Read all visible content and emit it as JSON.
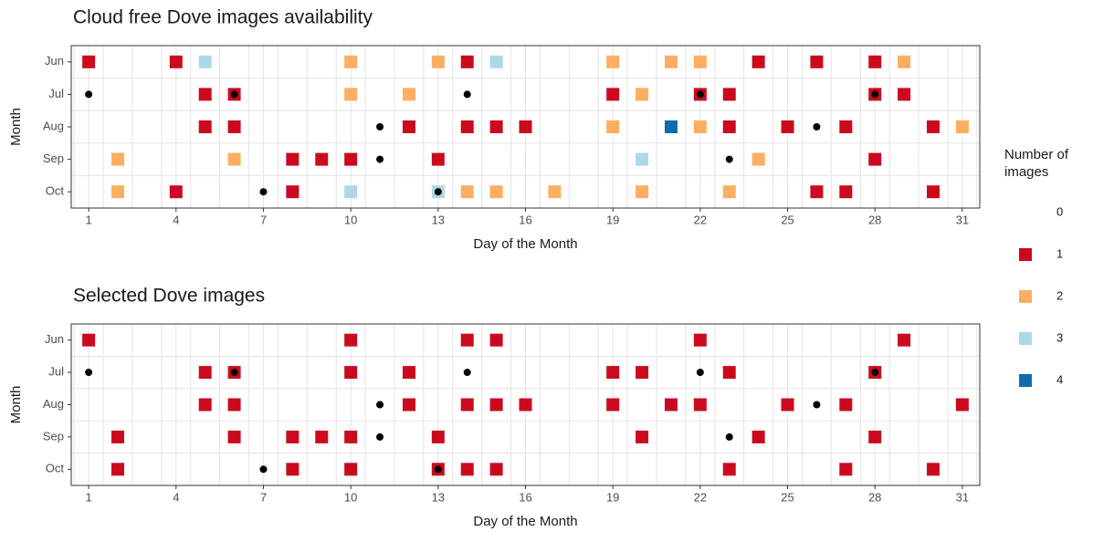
{
  "chart_data": [
    {
      "type": "scatter",
      "title": "Cloud free Dove images availability",
      "x_label": "Day of the Month",
      "y_label": "Month",
      "categories": [
        "Jun",
        "Jul",
        "Aug",
        "Sep",
        "Oct"
      ],
      "xlim": [
        0.4,
        31.6
      ],
      "xticks": [
        1,
        4,
        7,
        10,
        13,
        16,
        19,
        22,
        25,
        28,
        31
      ],
      "grid": true,
      "points": {
        "x": [
          1,
          4,
          5,
          10,
          13,
          14,
          15,
          19,
          21,
          22,
          24,
          26,
          28,
          29,
          5,
          6,
          10,
          12,
          19,
          20,
          22,
          23,
          28,
          29,
          5,
          6,
          12,
          14,
          15,
          16,
          19,
          21,
          22,
          23,
          25,
          27,
          30,
          31,
          2,
          6,
          8,
          9,
          10,
          13,
          20,
          24,
          28,
          2,
          4,
          8,
          10,
          13,
          14,
          15,
          17,
          20,
          23,
          26,
          27,
          30
        ],
        "y": [
          "Jun",
          "Jun",
          "Jun",
          "Jun",
          "Jun",
          "Jun",
          "Jun",
          "Jun",
          "Jun",
          "Jun",
          "Jun",
          "Jun",
          "Jun",
          "Jun",
          "Jul",
          "Jul",
          "Jul",
          "Jul",
          "Jul",
          "Jul",
          "Jul",
          "Jul",
          "Jul",
          "Jul",
          "Aug",
          "Aug",
          "Aug",
          "Aug",
          "Aug",
          "Aug",
          "Aug",
          "Aug",
          "Aug",
          "Aug",
          "Aug",
          "Aug",
          "Aug",
          "Aug",
          "Sep",
          "Sep",
          "Sep",
          "Sep",
          "Sep",
          "Sep",
          "Sep",
          "Sep",
          "Sep",
          "Oct",
          "Oct",
          "Oct",
          "Oct",
          "Oct",
          "Oct",
          "Oct",
          "Oct",
          "Oct",
          "Oct",
          "Oct",
          "Oct",
          "Oct"
        ],
        "values": [
          1,
          1,
          3,
          2,
          2,
          1,
          3,
          2,
          2,
          2,
          1,
          1,
          1,
          2,
          1,
          1,
          2,
          2,
          1,
          2,
          1,
          1,
          1,
          1,
          1,
          1,
          1,
          1,
          1,
          1,
          2,
          4,
          2,
          1,
          1,
          1,
          1,
          2,
          2,
          2,
          1,
          1,
          1,
          1,
          3,
          2,
          1,
          2,
          1,
          1,
          3,
          3,
          2,
          2,
          2,
          2,
          2,
          1,
          1,
          1
        ]
      },
      "dots": {
        "x": [
          1,
          6,
          14,
          22,
          28,
          11,
          26,
          11,
          23,
          7,
          13
        ],
        "y": [
          "Jul",
          "Jul",
          "Jul",
          "Jul",
          "Jul",
          "Aug",
          "Aug",
          "Sep",
          "Sep",
          "Oct",
          "Oct"
        ]
      }
    },
    {
      "type": "scatter",
      "title": "Selected Dove images",
      "x_label": "Day of the Month",
      "y_label": "Month",
      "categories": [
        "Jun",
        "Jul",
        "Aug",
        "Sep",
        "Oct"
      ],
      "xlim": [
        0.4,
        31.6
      ],
      "xticks": [
        1,
        4,
        7,
        10,
        13,
        16,
        19,
        22,
        25,
        28,
        31
      ],
      "grid": true,
      "points": {
        "x": [
          1,
          10,
          14,
          15,
          22,
          29,
          5,
          6,
          10,
          12,
          19,
          20,
          23,
          28,
          5,
          6,
          12,
          14,
          15,
          16,
          19,
          21,
          22,
          25,
          27,
          31,
          2,
          6,
          8,
          9,
          10,
          13,
          20,
          24,
          28,
          2,
          8,
          10,
          13,
          14,
          15,
          23,
          27,
          30
        ],
        "y": [
          "Jun",
          "Jun",
          "Jun",
          "Jun",
          "Jun",
          "Jun",
          "Jul",
          "Jul",
          "Jul",
          "Jul",
          "Jul",
          "Jul",
          "Jul",
          "Jul",
          "Aug",
          "Aug",
          "Aug",
          "Aug",
          "Aug",
          "Aug",
          "Aug",
          "Aug",
          "Aug",
          "Aug",
          "Aug",
          "Aug",
          "Sep",
          "Sep",
          "Sep",
          "Sep",
          "Sep",
          "Sep",
          "Sep",
          "Sep",
          "Sep",
          "Oct",
          "Oct",
          "Oct",
          "Oct",
          "Oct",
          "Oct",
          "Oct",
          "Oct",
          "Oct"
        ],
        "values": [
          1,
          1,
          1,
          1,
          1,
          1,
          1,
          1,
          1,
          1,
          1,
          1,
          1,
          1,
          1,
          1,
          1,
          1,
          1,
          1,
          1,
          1,
          1,
          1,
          1,
          1,
          1,
          1,
          1,
          1,
          1,
          1,
          1,
          1,
          1,
          1,
          1,
          1,
          1,
          1,
          1,
          1,
          1,
          1
        ]
      },
      "dots": {
        "x": [
          1,
          6,
          14,
          22,
          28,
          11,
          26,
          11,
          23,
          7,
          13
        ],
        "y": [
          "Jul",
          "Jul",
          "Jul",
          "Jul",
          "Jul",
          "Aug",
          "Aug",
          "Sep",
          "Sep",
          "Oct",
          "Oct"
        ]
      }
    }
  ],
  "legend": {
    "title": "Number of images",
    "levels": [
      0,
      1,
      2,
      3,
      4
    ],
    "colors": [
      "#ffffff",
      "#cc0a1e",
      "#fdae61",
      "#abd9e9",
      "#0f6bb0"
    ]
  }
}
